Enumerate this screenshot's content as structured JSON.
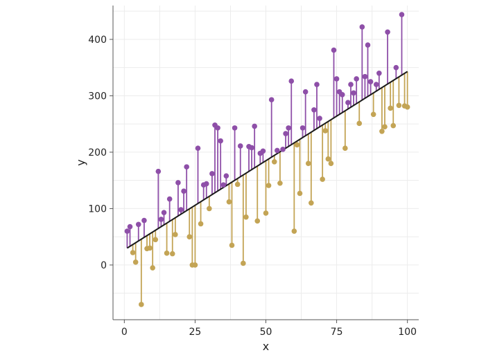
{
  "chart_data": {
    "type": "scatter",
    "title": "",
    "xlabel": "x",
    "ylabel": "y",
    "xlim": [
      -4,
      104
    ],
    "ylim": [
      -97,
      460
    ],
    "xticks": [
      0,
      25,
      50,
      75,
      100
    ],
    "yticks": [
      0,
      100,
      200,
      300,
      400
    ],
    "grid": true,
    "legend": "none",
    "colors": {
      "above": "#8e4fa8",
      "below": "#c3a455",
      "fit_line": "#1a1a1a",
      "grid": "#ececec",
      "axis": "#555555"
    },
    "regression": {
      "x": [
        1,
        100
      ],
      "y": [
        30,
        343
      ]
    },
    "points": {
      "x": [
        1,
        2,
        3,
        4,
        5,
        6,
        7,
        8,
        9,
        10,
        11,
        12,
        13,
        14,
        15,
        16,
        17,
        18,
        19,
        20,
        21,
        22,
        23,
        24,
        25,
        26,
        27,
        28,
        29,
        30,
        31,
        32,
        33,
        34,
        35,
        36,
        37,
        38,
        39,
        40,
        41,
        42,
        43,
        44,
        45,
        46,
        47,
        48,
        49,
        50,
        51,
        52,
        53,
        54,
        55,
        56,
        57,
        58,
        59,
        60,
        61,
        62,
        63,
        64,
        65,
        66,
        67,
        68,
        69,
        70,
        71,
        72,
        73,
        74,
        75,
        76,
        77,
        78,
        79,
        80,
        81,
        82,
        83,
        84,
        85,
        86,
        87,
        88,
        89,
        90,
        91,
        92,
        93,
        94,
        95,
        96,
        97,
        98,
        99,
        100
      ],
      "y": [
        60,
        68,
        22,
        5,
        72,
        -70,
        79,
        29,
        30,
        -5,
        45,
        166,
        81,
        93,
        21,
        117,
        20,
        54,
        146,
        98,
        131,
        174,
        50,
        0,
        0,
        207,
        73,
        142,
        144,
        100,
        162,
        248,
        243,
        220,
        142,
        158,
        112,
        35,
        243,
        143,
        211,
        3,
        85,
        210,
        208,
        246,
        78,
        198,
        202,
        92,
        141,
        293,
        183,
        203,
        145,
        205,
        233,
        243,
        326,
        60,
        213,
        127,
        243,
        307,
        180,
        110,
        275,
        320,
        260,
        152,
        238,
        188,
        180,
        381,
        330,
        307,
        302,
        207,
        288,
        320,
        305,
        330,
        251,
        422,
        334,
        390,
        325,
        267,
        320,
        340,
        237,
        245,
        413,
        278,
        247,
        350,
        283,
        444,
        282,
        280
      ]
    }
  }
}
